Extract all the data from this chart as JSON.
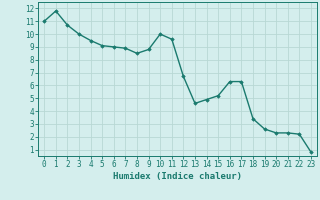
{
  "x": [
    0,
    1,
    2,
    3,
    4,
    5,
    6,
    7,
    8,
    9,
    10,
    11,
    12,
    13,
    14,
    15,
    16,
    17,
    18,
    19,
    20,
    21,
    22,
    23
  ],
  "y": [
    11,
    11.8,
    10.7,
    10.0,
    9.5,
    9.1,
    9.0,
    8.9,
    8.5,
    8.8,
    10.0,
    9.6,
    6.7,
    4.6,
    4.9,
    5.2,
    6.3,
    6.3,
    3.4,
    2.6,
    2.3,
    2.3,
    2.2,
    0.8
  ],
  "line_color": "#1a7a6e",
  "marker": "D",
  "marker_size": 1.8,
  "bg_color": "#d4eeed",
  "grid_color": "#b8d8d4",
  "xlabel": "Humidex (Indice chaleur)",
  "xlim": [
    -0.5,
    23.5
  ],
  "ylim": [
    0.5,
    12.5
  ],
  "yticks": [
    1,
    2,
    3,
    4,
    5,
    6,
    7,
    8,
    9,
    10,
    11,
    12
  ],
  "xticks": [
    0,
    1,
    2,
    3,
    4,
    5,
    6,
    7,
    8,
    9,
    10,
    11,
    12,
    13,
    14,
    15,
    16,
    17,
    18,
    19,
    20,
    21,
    22,
    23
  ],
  "xlabel_fontsize": 6.5,
  "tick_fontsize": 5.5,
  "line_width": 1.0
}
